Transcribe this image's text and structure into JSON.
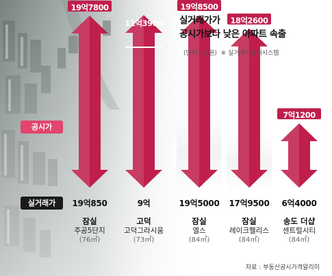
{
  "title_line1": "실거래가가",
  "title_line2": "공시가보다 낮은 아파트 속출",
  "note_unit": "(단위 : 만원)",
  "note_basis": "※ 실거래가공개시스템",
  "row_official": "공시가",
  "row_actual": "실거래가",
  "source": "자료 : 부동산공시가격알리미",
  "colors": {
    "arrow_dark": "#c01e4c",
    "arrow_light": "#f4c6d2",
    "tag_official": "#e2456e",
    "tag_actual": "#1a1a1a"
  },
  "chart_data": {
    "type": "bar",
    "title": "실거래가가 공시가보다 낮은 아파트 속출",
    "unit": "만원",
    "categories": [
      {
        "region": "잠실",
        "apartment": "주공5단지",
        "size": "(76㎡)"
      },
      {
        "region": "고덕",
        "apartment": "고덕그라시움",
        "size": "(73㎡)"
      },
      {
        "region": "잠실",
        "apartment": "엘스",
        "size": "(84㎡)"
      },
      {
        "region": "잠실",
        "apartment": "레이크팰리스",
        "size": "(84㎡)"
      },
      {
        "region": "송도 더샵",
        "apartment": "센트럴시티",
        "size": "(84㎡)"
      }
    ],
    "series": [
      {
        "name": "공시가",
        "values": [
          197800,
          113900,
          198500,
          182600,
          71200
        ],
        "labels": [
          "19억7800",
          "11억3900",
          "19억8500",
          "18억2600",
          "7억1200"
        ]
      },
      {
        "name": "실거래가",
        "values": [
          190850,
          90000,
          195000,
          179500,
          64000
        ],
        "labels": [
          "19억850",
          "9억",
          "19억5000",
          "17억9500",
          "6억4000"
        ]
      }
    ]
  }
}
